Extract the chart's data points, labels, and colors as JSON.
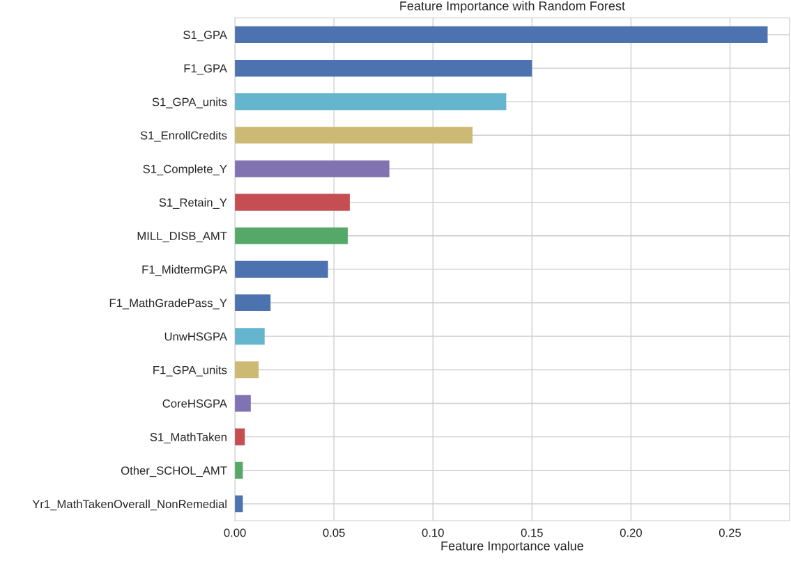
{
  "chart_data": {
    "type": "bar",
    "orientation": "horizontal",
    "title": "Feature Importance with Random Forest",
    "xlabel": "Feature Importance value",
    "categories": [
      "S1_GPA",
      "F1_GPA",
      "S1_GPA_units",
      "S1_EnrollCredits",
      "S1_Complete_Y",
      "S1_Retain_Y",
      "MILL_DISB_AMT",
      "F1_MidtermGPA",
      "F1_MathGradePass_Y",
      "UnwHSGPA",
      "F1_GPA_units",
      "CoreHSGPA",
      "S1_MathTaken",
      "Other_SCHOL_AMT",
      "Yr1_MathTakenOverall_NonRemedial"
    ],
    "values": [
      0.269,
      0.15,
      0.137,
      0.12,
      0.078,
      0.058,
      0.057,
      0.047,
      0.018,
      0.015,
      0.012,
      0.008,
      0.005,
      0.004,
      0.004
    ],
    "colors": [
      "#4c72b0",
      "#4c72b0",
      "#64b5cd",
      "#ccb974",
      "#8172b2",
      "#c44e52",
      "#55a868",
      "#4c72b0",
      "#4c72b0",
      "#64b5cd",
      "#ccb974",
      "#8172b2",
      "#c44e52",
      "#55a868",
      "#4c72b0"
    ],
    "xlim": [
      0,
      0.28
    ],
    "xticks": [
      {
        "value": 0,
        "label": "0.00"
      },
      {
        "value": 0.05,
        "label": "0.05"
      },
      {
        "value": 0.1,
        "label": "0.10"
      },
      {
        "value": 0.15,
        "label": "0.15"
      },
      {
        "value": 0.2,
        "label": "0.20"
      },
      {
        "value": 0.25,
        "label": "0.25"
      }
    ],
    "grid": true,
    "legend": false
  }
}
